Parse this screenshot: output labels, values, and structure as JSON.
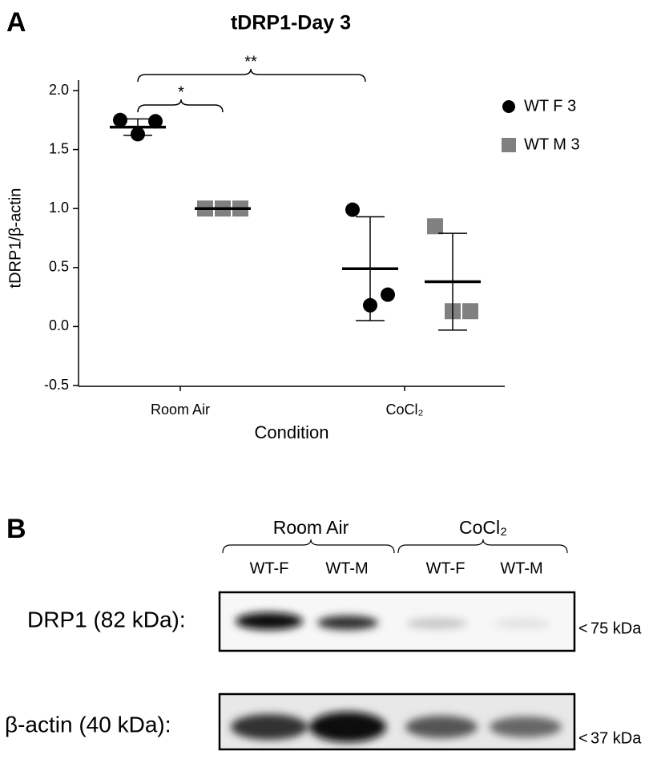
{
  "chart_data": {
    "type": "scatter",
    "panel": "A",
    "title": "tDRP1-Day 3",
    "x_label": "Condition",
    "y_label": "tDRP1/β-actin",
    "categories": [
      "Room Air",
      "CoCl₂"
    ],
    "series": [
      {
        "name": "WT F 3",
        "color": "#000000",
        "marker": "circle",
        "values": [
          [
            1.75,
            1.63,
            1.74
          ],
          [
            0.99,
            0.18,
            0.27
          ]
        ],
        "mean": [
          1.69,
          0.49
        ],
        "sd": [
          0.07,
          0.44
        ]
      },
      {
        "name": "WT M 3",
        "color": "#808080",
        "marker": "square",
        "values": [
          [
            1.0,
            1.0,
            1.0
          ],
          [
            0.85,
            0.13,
            0.13
          ]
        ],
        "mean": [
          1.0,
          0.38
        ],
        "sd": [
          0,
          0.41
        ]
      }
    ],
    "annotations": [
      "*",
      "**"
    ],
    "ylim": [
      -0.5,
      2.0
    ],
    "yticks": [
      {
        "value": 2.0,
        "label": "2.0"
      },
      1.5,
      {
        "value": 1.0,
        "label": "1.0"
      },
      0.5,
      {
        "value": 0.0,
        "label": "0.0"
      },
      -0.5
    ],
    "legend": "top-right"
  },
  "blot": {
    "panel": "B",
    "groups": [
      "Room Air",
      "CoCl₂"
    ],
    "lanes": [
      "WT-F",
      "WT-M",
      "WT-F",
      "WT-M"
    ],
    "rows": [
      {
        "label": "DRP1 (82 kDa):",
        "marker": "75 kDa"
      },
      {
        "label": "β-actin (40 kDa):",
        "marker": "37 kDa"
      }
    ]
  }
}
